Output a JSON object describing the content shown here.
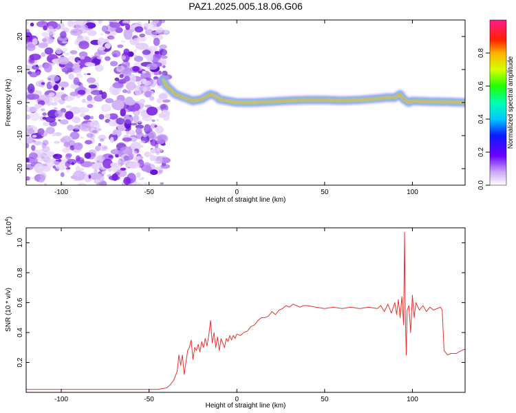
{
  "figure_title": "PAZ1.2025.005.18.06.G06",
  "colors": {
    "snr_line": "#e8302a",
    "noise_cloud": "#7a1fe0",
    "signal_core": "#ff2a00"
  },
  "chart_data": [
    {
      "type": "heatmap",
      "title": "PAZ1.2025.005.18.06.G06",
      "xlabel": "Height of straight line (km)",
      "ylabel": "Frequency (Hz)",
      "xlim": [
        -120,
        130
      ],
      "ylim": [
        -25,
        25
      ],
      "x_ticks": [
        -100,
        -50,
        0,
        50,
        100
      ],
      "y_ticks": [
        -20,
        -10,
        0,
        10,
        20
      ],
      "colorbar": {
        "label": "Normalized spectral amplitude",
        "range": [
          0,
          1
        ],
        "ticks": [
          0.0,
          0.2,
          0.4,
          0.6,
          0.8
        ],
        "colormap": "rainbow (white-violet-blue-cyan-green-yellow-red-magenta)"
      },
      "noise_region_x": [
        -120,
        -40
      ],
      "ridge": {
        "x": [
          -42,
          -40,
          -38,
          -35,
          -30,
          -25,
          -20,
          -17,
          -15,
          -12,
          -10,
          -5,
          0,
          10,
          20,
          30,
          40,
          50,
          60,
          70,
          80,
          85,
          90,
          93,
          95,
          98,
          100,
          110,
          120,
          130
        ],
        "freq": [
          7,
          5,
          4,
          2.5,
          1.5,
          0.5,
          1,
          2,
          2.5,
          2,
          1,
          0.5,
          0,
          0,
          0.3,
          0.6,
          0.8,
          0.8,
          0.6,
          0.8,
          1.2,
          1.5,
          1.5,
          2.5,
          1,
          0,
          0.5,
          0.3,
          0.2,
          0
        ]
      }
    },
    {
      "type": "line",
      "xlabel": "Height of straight line (km)",
      "ylabel": "SNR (10 * v/v)",
      "y_scale_label": "(x10^4)",
      "xlim": [
        -120,
        130
      ],
      "ylim": [
        0,
        1.1
      ],
      "x_ticks": [
        -100,
        -50,
        0,
        50,
        100
      ],
      "y_ticks": [
        0.2,
        0.4,
        0.6,
        0.8,
        1.0
      ],
      "series": [
        {
          "x": [
            -120,
            -100,
            -80,
            -60,
            -45,
            -40,
            -38,
            -36,
            -34,
            -33,
            -32,
            -31,
            -30,
            -29,
            -28,
            -27,
            -26,
            -25,
            -24,
            -23,
            -22,
            -21,
            -20,
            -19,
            -18,
            -17,
            -16,
            -15,
            -14,
            -13,
            -12,
            -11,
            -10,
            -9,
            -8,
            -7,
            -6,
            -5,
            -4,
            -3,
            -2,
            -1,
            0,
            2,
            4,
            6,
            8,
            10,
            12,
            14,
            16,
            18,
            20,
            22,
            24,
            26,
            28,
            30,
            32,
            34,
            36,
            38,
            40,
            45,
            50,
            55,
            60,
            65,
            70,
            75,
            80,
            82,
            84,
            86,
            88,
            90,
            91,
            92,
            93,
            94,
            95,
            95.5,
            96,
            96.5,
            97,
            98,
            99,
            100,
            101,
            102,
            104,
            106,
            108,
            110,
            112,
            114,
            116,
            117,
            118,
            120,
            122,
            125,
            128,
            130
          ],
          "y": [
            0.02,
            0.02,
            0.02,
            0.02,
            0.02,
            0.03,
            0.05,
            0.08,
            0.14,
            0.25,
            0.18,
            0.25,
            0.12,
            0.2,
            0.28,
            0.3,
            0.35,
            0.22,
            0.3,
            0.28,
            0.32,
            0.27,
            0.34,
            0.3,
            0.36,
            0.31,
            0.38,
            0.48,
            0.33,
            0.4,
            0.3,
            0.37,
            0.28,
            0.36,
            0.33,
            0.3,
            0.36,
            0.34,
            0.38,
            0.35,
            0.38,
            0.36,
            0.39,
            0.38,
            0.4,
            0.41,
            0.44,
            0.45,
            0.48,
            0.5,
            0.5,
            0.51,
            0.54,
            0.52,
            0.55,
            0.56,
            0.58,
            0.57,
            0.59,
            0.58,
            0.57,
            0.58,
            0.58,
            0.57,
            0.56,
            0.57,
            0.56,
            0.57,
            0.56,
            0.57,
            0.56,
            0.58,
            0.54,
            0.59,
            0.53,
            0.6,
            0.52,
            0.62,
            0.5,
            0.64,
            0.45,
            1.07,
            0.5,
            0.25,
            0.55,
            0.58,
            0.4,
            0.65,
            0.5,
            0.6,
            0.55,
            0.58,
            0.54,
            0.57,
            0.55,
            0.56,
            0.57,
            0.55,
            0.28,
            0.25,
            0.26,
            0.26,
            0.28,
            0.29
          ]
        }
      ]
    }
  ]
}
